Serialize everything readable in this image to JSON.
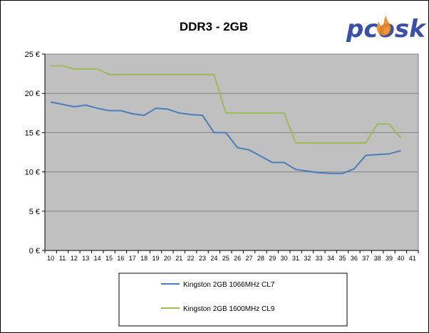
{
  "logo": {
    "text": "pcosk",
    "primary_color": "#3a4fa8",
    "flame_color": "#f08a1c"
  },
  "chart_data": {
    "type": "line",
    "title": "DDR3 - 2GB",
    "xlabel": "",
    "ylabel": "",
    "x": [
      10,
      11,
      12,
      13,
      14,
      15,
      16,
      17,
      18,
      19,
      20,
      21,
      22,
      23,
      24,
      25,
      26,
      27,
      28,
      29,
      30,
      31,
      32,
      33,
      34,
      35,
      36,
      37,
      38,
      39,
      40
    ],
    "x_ticks": [
      "10",
      "11",
      "12",
      "13",
      "14",
      "15",
      "16",
      "17",
      "18",
      "19",
      "20",
      "21",
      "22",
      "23",
      "24",
      "25",
      "26",
      "27",
      "28",
      "29",
      "30",
      "31",
      "32",
      "33",
      "34",
      "35",
      "36",
      "37",
      "38",
      "39",
      "40",
      "41"
    ],
    "xlim": [
      10,
      41
    ],
    "ylim": [
      0,
      25
    ],
    "y_ticks": [
      {
        "value": 0,
        "label": "0 €"
      },
      {
        "value": 5,
        "label": "5 €"
      },
      {
        "value": 10,
        "label": "10 €"
      },
      {
        "value": 15,
        "label": "15 €"
      },
      {
        "value": 20,
        "label": "20 €"
      },
      {
        "value": 25,
        "label": "25 €"
      }
    ],
    "grid": "horizontal",
    "legend_position": "bottom",
    "plot_background": "#c0c0c0",
    "series": [
      {
        "name": "Kingston 2GB 1066MHz CL7",
        "color": "#4a7ebb",
        "values": [
          18.9,
          18.6,
          18.3,
          18.5,
          18.1,
          17.8,
          17.8,
          17.4,
          17.2,
          18.1,
          18.0,
          17.5,
          17.3,
          17.2,
          15.0,
          15.0,
          13.1,
          12.8,
          12.0,
          11.2,
          11.2,
          10.3,
          10.1,
          9.9,
          9.8,
          9.8,
          10.4,
          12.1,
          12.2,
          12.3,
          12.7
        ]
      },
      {
        "name": "Kingston 2GB 1600MHz CL9",
        "color": "#9bbb59",
        "values": [
          23.5,
          23.5,
          23.1,
          23.1,
          23.1,
          22.4,
          22.4,
          22.4,
          22.4,
          22.4,
          22.4,
          22.4,
          22.4,
          22.4,
          22.4,
          17.5,
          17.5,
          17.5,
          17.5,
          17.5,
          17.5,
          13.7,
          13.7,
          13.7,
          13.7,
          13.7,
          13.7,
          13.7,
          16.1,
          16.1,
          14.3
        ]
      }
    ]
  }
}
